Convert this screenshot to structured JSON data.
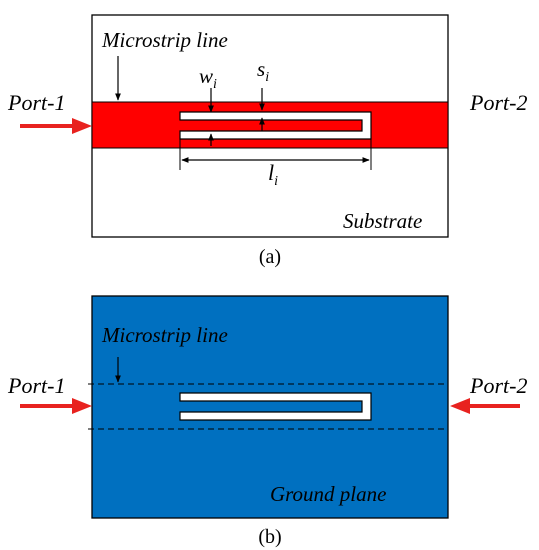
{
  "panel_a": {
    "caption": "(a)",
    "labels": {
      "microstrip_line": "Microstrip line",
      "port1": "Port-1",
      "port2": "Port-2",
      "substrate": "Substrate",
      "w": "w",
      "w_sub": "i",
      "s": "s",
      "s_sub": "i",
      "l": "l",
      "l_sub": "i"
    },
    "colors": {
      "strip": "#ff0000",
      "substrate": "#ffffff",
      "arrow": "#e8221f"
    }
  },
  "panel_b": {
    "caption": "(b)",
    "labels": {
      "microstrip_line": "Microstrip line",
      "port1": "Port-1",
      "port2": "Port-2",
      "ground_plane": "Ground plane"
    },
    "colors": {
      "ground": "#0070c0",
      "arrow": "#e8221f"
    }
  }
}
